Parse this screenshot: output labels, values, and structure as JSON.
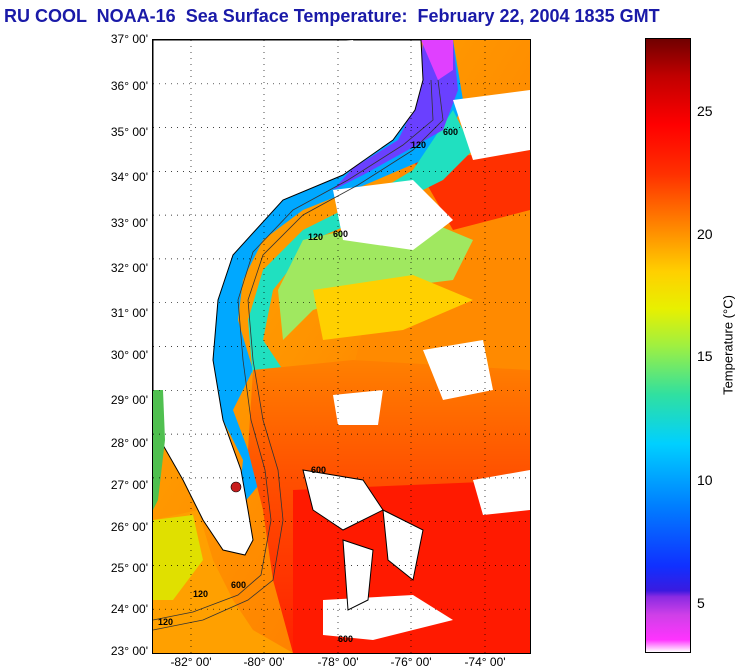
{
  "title": "RU COOL  NOAA-16  Sea Surface Temperature:  February 22, 2004 1835 GMT",
  "map": {
    "lat_ticks": [
      "37° 00'",
      "36° 00'",
      "35° 00'",
      "34° 00'",
      "33° 00'",
      "32° 00'",
      "31° 00'",
      "30° 00'",
      "29° 00'",
      "28° 00'",
      "27° 00'",
      "26° 00'",
      "25° 00'",
      "24° 00'",
      "23° 00'"
    ],
    "lon_ticks": [
      "-82° 00'",
      "-80° 00'",
      "-78° 00'",
      "-76° 00'",
      "-74° 00'"
    ],
    "isobath_labels": [
      "600",
      "120",
      "600",
      "120",
      "600",
      "120",
      "600",
      "120",
      "600"
    ]
  },
  "colorbar": {
    "label": "Temperature (°C)",
    "ticks": [
      "25",
      "20",
      "15",
      "10",
      "5"
    ],
    "min": 3,
    "max": 28,
    "colors": {
      "cold": "#ff33ff",
      "cool": "#1030ff",
      "mid": "#e8f000",
      "warm": "#ff0000",
      "hot": "#700000"
    }
  }
}
